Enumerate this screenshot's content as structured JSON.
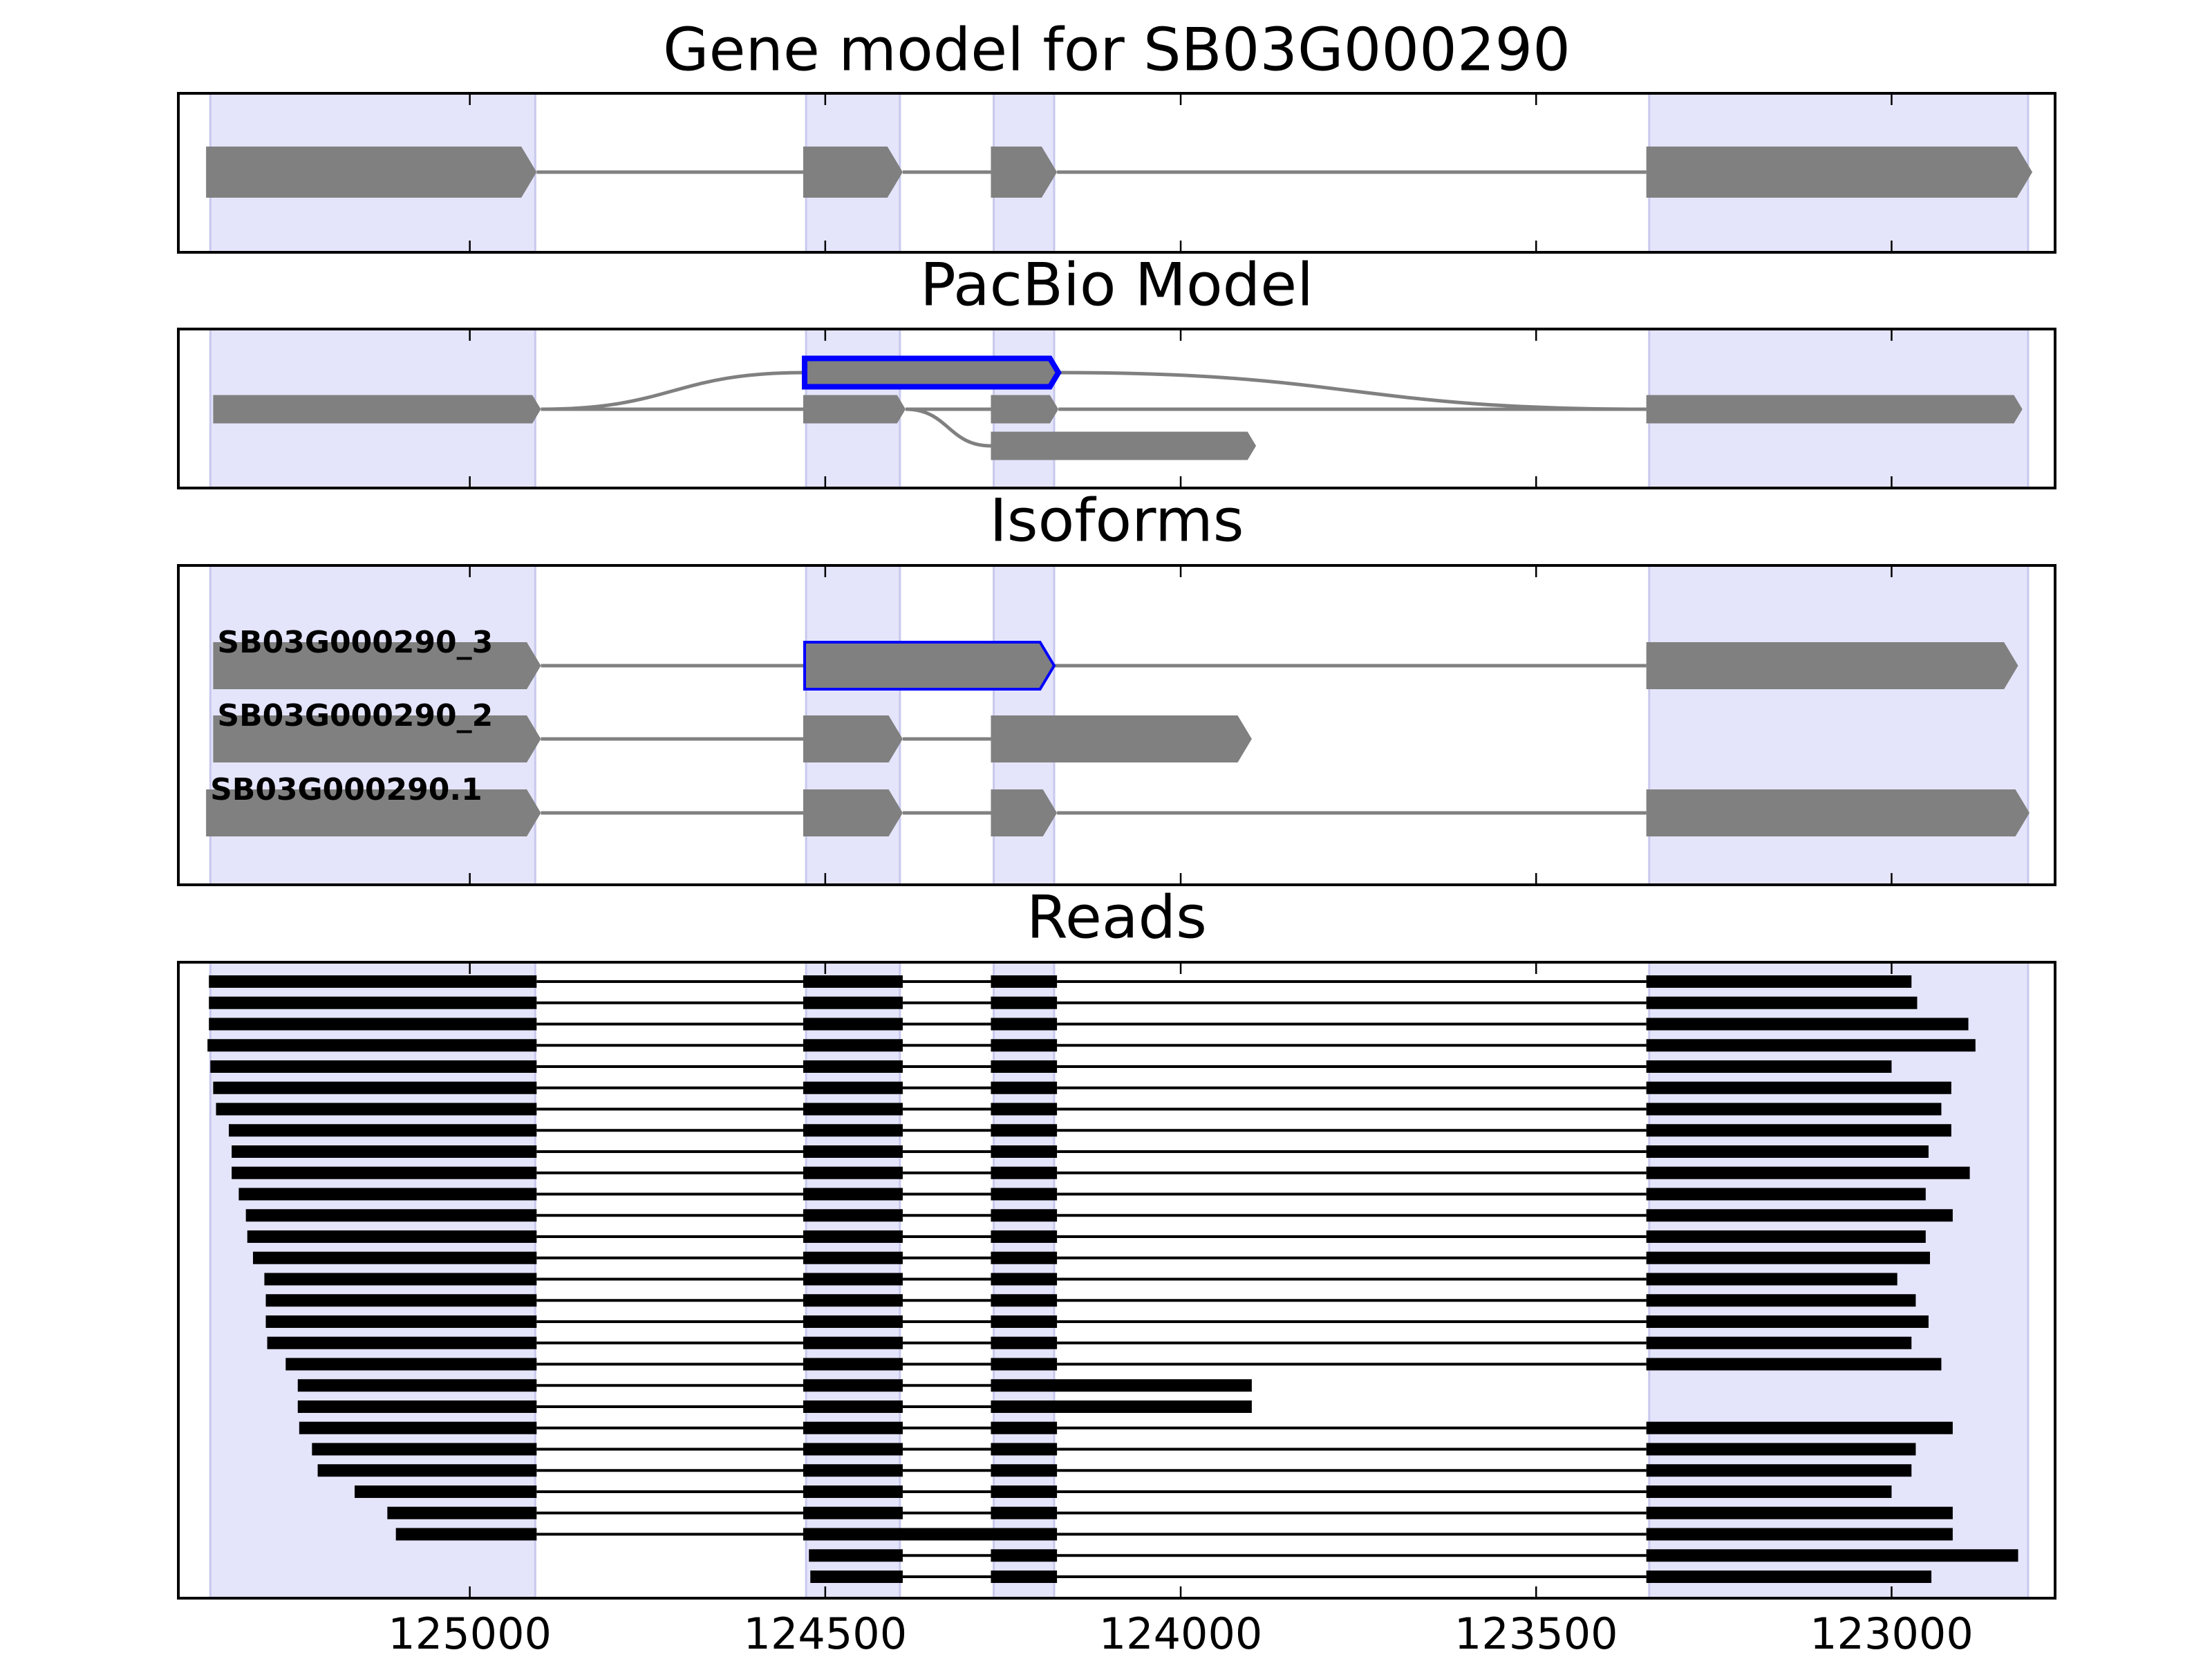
{
  "chart_data": [
    {
      "type": "gene-model",
      "title": "Gene model for SB03G000290",
      "xlim": [
        125410,
        122770
      ],
      "xticks": [
        125000,
        124500,
        124000,
        123500,
        123000
      ],
      "regions": [
        [
          125365,
          124908
        ],
        [
          124527,
          124395
        ],
        [
          124263,
          124178
        ],
        [
          123341,
          122808
        ]
      ],
      "region_color": "#e4e4fb",
      "color": "#808080",
      "transcripts": [
        {
          "exons": [
            [
              125371,
              124906
            ],
            [
              124531,
              124391
            ],
            [
              124267,
              124174
            ],
            [
              123345,
              122802
            ]
          ]
        }
      ]
    },
    {
      "type": "pacbio",
      "title": "PacBio Model",
      "xlim": [
        125410,
        122770
      ],
      "xticks": [
        125000,
        124500,
        124000,
        123500,
        123000
      ],
      "regions": [
        [
          125365,
          124908
        ],
        [
          124527,
          124395
        ],
        [
          124263,
          124178
        ],
        [
          123341,
          122808
        ]
      ],
      "region_color": "#e4e4fb",
      "color": "#808080",
      "highlight_color": "#0000ff",
      "nodes": [
        {
          "start": 125361,
          "end": 124900,
          "row": 1
        },
        {
          "start": 124531,
          "end": 124387,
          "row": 1
        },
        {
          "start": 124267,
          "end": 124172,
          "row": 1
        },
        {
          "start": 123345,
          "end": 122816,
          "row": 1
        },
        {
          "start": 124529,
          "end": 124172,
          "row": 0,
          "highlight": true
        },
        {
          "start": 124267,
          "end": 123894,
          "row": 2
        }
      ],
      "edges": [
        [
          0,
          1
        ],
        [
          1,
          2
        ],
        [
          2,
          3
        ],
        [
          0,
          4
        ],
        [
          4,
          3
        ],
        [
          1,
          5
        ]
      ]
    },
    {
      "type": "isoforms",
      "title": "Isoforms",
      "xlim": [
        125410,
        122770
      ],
      "xticks": [
        125000,
        124500,
        124000,
        123500,
        123000
      ],
      "regions": [
        [
          125365,
          124908
        ],
        [
          124527,
          124395
        ],
        [
          124263,
          124178
        ],
        [
          123341,
          122808
        ]
      ],
      "region_color": "#e4e4fb",
      "color": "#808080",
      "highlight_color": "#0000ff",
      "transcripts": [
        {
          "name": "SB03G000290_3",
          "exons": [
            [
              125361,
              124900
            ],
            [
              124529,
              124178
            ],
            [
              123345,
              122822
            ]
          ],
          "highlight_exon": 1
        },
        {
          "name": "SB03G000290_2",
          "exons": [
            [
              125361,
              124900
            ],
            [
              124531,
              124391
            ],
            [
              124267,
              123900
            ]
          ]
        },
        {
          "name": "SB03G000290.1",
          "exons": [
            [
              125371,
              124900
            ],
            [
              124531,
              124391
            ],
            [
              124267,
              124174
            ],
            [
              123345,
              122806
            ]
          ]
        }
      ]
    },
    {
      "type": "reads",
      "title": "Reads",
      "xlim": [
        125410,
        122770
      ],
      "xticks": [
        125000,
        124500,
        124000,
        123500,
        123000
      ],
      "xtick_labels": true,
      "regions": [
        [
          125365,
          124908
        ],
        [
          124527,
          124395
        ],
        [
          124263,
          124178
        ],
        [
          123341,
          122808
        ]
      ],
      "region_color": "#e4e4fb",
      "color": "#000000",
      "reads": [
        [
          [
            125367,
            124906
          ],
          [
            124531,
            124391
          ],
          [
            124267,
            124174
          ],
          [
            123345,
            122972
          ]
        ],
        [
          [
            125367,
            124906
          ],
          [
            124531,
            124391
          ],
          [
            124267,
            124174
          ],
          [
            123345,
            122964
          ]
        ],
        [
          [
            125367,
            124906
          ],
          [
            124531,
            124391
          ],
          [
            124267,
            124174
          ],
          [
            123345,
            122892
          ]
        ],
        [
          [
            125369,
            124906
          ],
          [
            124531,
            124391
          ],
          [
            124267,
            124174
          ],
          [
            123345,
            122882
          ]
        ],
        [
          [
            125365,
            124906
          ],
          [
            124531,
            124391
          ],
          [
            124267,
            124174
          ],
          [
            123345,
            123000
          ]
        ],
        [
          [
            125361,
            124906
          ],
          [
            124531,
            124391
          ],
          [
            124267,
            124174
          ],
          [
            123345,
            122916
          ]
        ],
        [
          [
            125357,
            124906
          ],
          [
            124531,
            124391
          ],
          [
            124267,
            124174
          ],
          [
            123345,
            122930
          ]
        ],
        [
          [
            125339,
            124906
          ],
          [
            124531,
            124391
          ],
          [
            124267,
            124174
          ],
          [
            123345,
            122916
          ]
        ],
        [
          [
            125335,
            124906
          ],
          [
            124531,
            124391
          ],
          [
            124267,
            124174
          ],
          [
            123345,
            122948
          ]
        ],
        [
          [
            125335,
            124906
          ],
          [
            124531,
            124391
          ],
          [
            124267,
            124174
          ],
          [
            123345,
            122890
          ]
        ],
        [
          [
            125325,
            124906
          ],
          [
            124531,
            124391
          ],
          [
            124267,
            124174
          ],
          [
            123345,
            122952
          ]
        ],
        [
          [
            125315,
            124906
          ],
          [
            124531,
            124391
          ],
          [
            124267,
            124174
          ],
          [
            123345,
            122914
          ]
        ],
        [
          [
            125313,
            124906
          ],
          [
            124531,
            124391
          ],
          [
            124267,
            124174
          ],
          [
            123345,
            122952
          ]
        ],
        [
          [
            125305,
            124906
          ],
          [
            124531,
            124391
          ],
          [
            124267,
            124174
          ],
          [
            123345,
            122946
          ]
        ],
        [
          [
            125289,
            124906
          ],
          [
            124531,
            124391
          ],
          [
            124267,
            124174
          ],
          [
            123345,
            122992
          ]
        ],
        [
          [
            125287,
            124906
          ],
          [
            124531,
            124391
          ],
          [
            124267,
            124174
          ],
          [
            123345,
            122966
          ]
        ],
        [
          [
            125287,
            124906
          ],
          [
            124531,
            124391
          ],
          [
            124267,
            124174
          ],
          [
            123345,
            122948
          ]
        ],
        [
          [
            125285,
            124906
          ],
          [
            124531,
            124391
          ],
          [
            124267,
            124174
          ],
          [
            123345,
            122972
          ]
        ],
        [
          [
            125259,
            124906
          ],
          [
            124531,
            124391
          ],
          [
            124267,
            124174
          ],
          [
            123345,
            122930
          ]
        ],
        [
          [
            125242,
            124906
          ],
          [
            124531,
            124391
          ],
          [
            124267,
            123900
          ]
        ],
        [
          [
            125242,
            124906
          ],
          [
            124531,
            124391
          ],
          [
            124267,
            123900
          ]
        ],
        [
          [
            125240,
            124906
          ],
          [
            124531,
            124391
          ],
          [
            124267,
            124174
          ],
          [
            123345,
            122914
          ]
        ],
        [
          [
            125222,
            124906
          ],
          [
            124531,
            124391
          ],
          [
            124267,
            124174
          ],
          [
            123345,
            122966
          ]
        ],
        [
          [
            125214,
            124906
          ],
          [
            124531,
            124391
          ],
          [
            124267,
            124174
          ],
          [
            123345,
            122972
          ]
        ],
        [
          [
            125162,
            124906
          ],
          [
            124531,
            124391
          ],
          [
            124267,
            124174
          ],
          [
            123345,
            123000
          ]
        ],
        [
          [
            125116,
            124906
          ],
          [
            124531,
            124391
          ],
          [
            124267,
            124174
          ],
          [
            123345,
            122914
          ]
        ],
        [
          [
            125104,
            124906
          ],
          [
            124531,
            124174
          ],
          [
            123345,
            122914
          ]
        ],
        [
          [
            124523,
            124391
          ],
          [
            124267,
            124174
          ],
          [
            123345,
            122822
          ]
        ],
        [
          [
            124521,
            124391
          ],
          [
            124267,
            124174
          ],
          [
            123345,
            122944
          ]
        ]
      ]
    }
  ]
}
